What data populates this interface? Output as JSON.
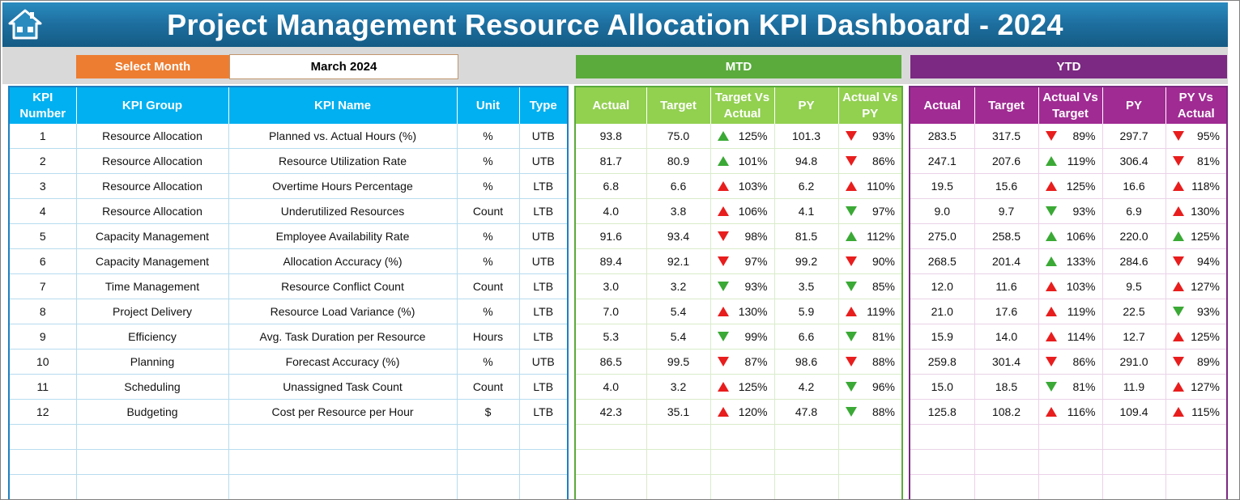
{
  "title": "Project Management Resource Allocation KPI Dashboard - 2024",
  "icons": {
    "home": "home-icon"
  },
  "selector": {
    "label": "Select Month",
    "value": "March 2024"
  },
  "sections": {
    "mtd": "MTD",
    "ytd": "YTD"
  },
  "colors": {
    "title": "#1d6e9e",
    "kpi_header": "#00b0f0",
    "mtd": "#5aab3c",
    "mtd_header": "#92d050",
    "ytd": "#7b2982",
    "ytd_header": "#a02b93",
    "select": "#ed7d31",
    "arrow_green": "#3aa935",
    "arrow_red": "#e81d1d"
  },
  "kpi_headers": [
    "KPI Number",
    "KPI Group",
    "KPI Name",
    "Unit",
    "Type"
  ],
  "mtd_headers": [
    "Actual",
    "Target",
    "Target Vs Actual",
    "PY",
    "Actual Vs PY"
  ],
  "ytd_headers": [
    "Actual",
    "Target",
    "Actual Vs Target",
    "PY",
    "PY Vs Actual"
  ],
  "rows": [
    {
      "num": "1",
      "group": "Resource Allocation",
      "name": "Planned vs. Actual Hours (%)",
      "unit": "%",
      "type": "UTB",
      "mtd": {
        "actual": "93.8",
        "target": "75.0",
        "tva": "125%",
        "tva_arrow": "up-green",
        "py": "101.3",
        "avp": "93%",
        "avp_arrow": "down-red"
      },
      "ytd": {
        "actual": "283.5",
        "target": "317.5",
        "avt": "89%",
        "avt_arrow": "down-red",
        "py": "297.7",
        "pva": "95%",
        "pva_arrow": "down-red"
      }
    },
    {
      "num": "2",
      "group": "Resource Allocation",
      "name": "Resource Utilization Rate",
      "unit": "%",
      "type": "UTB",
      "mtd": {
        "actual": "81.7",
        "target": "80.9",
        "tva": "101%",
        "tva_arrow": "up-green",
        "py": "94.8",
        "avp": "86%",
        "avp_arrow": "down-red"
      },
      "ytd": {
        "actual": "247.1",
        "target": "207.6",
        "avt": "119%",
        "avt_arrow": "up-green",
        "py": "306.4",
        "pva": "81%",
        "pva_arrow": "down-red"
      }
    },
    {
      "num": "3",
      "group": "Resource Allocation",
      "name": "Overtime Hours Percentage",
      "unit": "%",
      "type": "LTB",
      "mtd": {
        "actual": "6.8",
        "target": "6.6",
        "tva": "103%",
        "tva_arrow": "up-red",
        "py": "6.2",
        "avp": "110%",
        "avp_arrow": "up-red"
      },
      "ytd": {
        "actual": "19.5",
        "target": "15.6",
        "avt": "125%",
        "avt_arrow": "up-red",
        "py": "16.6",
        "pva": "118%",
        "pva_arrow": "up-red"
      }
    },
    {
      "num": "4",
      "group": "Resource Allocation",
      "name": "Underutilized Resources",
      "unit": "Count",
      "type": "LTB",
      "mtd": {
        "actual": "4.0",
        "target": "3.8",
        "tva": "106%",
        "tva_arrow": "up-red",
        "py": "4.1",
        "avp": "97%",
        "avp_arrow": "down-green"
      },
      "ytd": {
        "actual": "9.0",
        "target": "9.7",
        "avt": "93%",
        "avt_arrow": "down-green",
        "py": "6.9",
        "pva": "130%",
        "pva_arrow": "up-red"
      }
    },
    {
      "num": "5",
      "group": "Capacity Management",
      "name": "Employee Availability Rate",
      "unit": "%",
      "type": "UTB",
      "mtd": {
        "actual": "91.6",
        "target": "93.4",
        "tva": "98%",
        "tva_arrow": "down-red",
        "py": "81.5",
        "avp": "112%",
        "avp_arrow": "up-green"
      },
      "ytd": {
        "actual": "275.0",
        "target": "258.5",
        "avt": "106%",
        "avt_arrow": "up-green",
        "py": "220.0",
        "pva": "125%",
        "pva_arrow": "up-green"
      }
    },
    {
      "num": "6",
      "group": "Capacity Management",
      "name": "Allocation Accuracy (%)",
      "unit": "%",
      "type": "UTB",
      "mtd": {
        "actual": "89.4",
        "target": "92.1",
        "tva": "97%",
        "tva_arrow": "down-red",
        "py": "99.2",
        "avp": "90%",
        "avp_arrow": "down-red"
      },
      "ytd": {
        "actual": "268.5",
        "target": "201.4",
        "avt": "133%",
        "avt_arrow": "up-green",
        "py": "284.6",
        "pva": "94%",
        "pva_arrow": "down-red"
      }
    },
    {
      "num": "7",
      "group": "Time Management",
      "name": "Resource Conflict Count",
      "unit": "Count",
      "type": "LTB",
      "mtd": {
        "actual": "3.0",
        "target": "3.2",
        "tva": "93%",
        "tva_arrow": "down-green",
        "py": "3.5",
        "avp": "85%",
        "avp_arrow": "down-green"
      },
      "ytd": {
        "actual": "12.0",
        "target": "11.6",
        "avt": "103%",
        "avt_arrow": "up-red",
        "py": "9.5",
        "pva": "127%",
        "pva_arrow": "up-red"
      }
    },
    {
      "num": "8",
      "group": "Project Delivery",
      "name": "Resource Load Variance (%)",
      "unit": "%",
      "type": "LTB",
      "mtd": {
        "actual": "7.0",
        "target": "5.4",
        "tva": "130%",
        "tva_arrow": "up-red",
        "py": "5.9",
        "avp": "119%",
        "avp_arrow": "up-red"
      },
      "ytd": {
        "actual": "21.0",
        "target": "17.6",
        "avt": "119%",
        "avt_arrow": "up-red",
        "py": "22.5",
        "pva": "93%",
        "pva_arrow": "down-green"
      }
    },
    {
      "num": "9",
      "group": "Efficiency",
      "name": "Avg. Task Duration per Resource",
      "unit": "Hours",
      "type": "LTB",
      "mtd": {
        "actual": "5.3",
        "target": "5.4",
        "tva": "99%",
        "tva_arrow": "down-green",
        "py": "6.6",
        "avp": "81%",
        "avp_arrow": "down-green"
      },
      "ytd": {
        "actual": "15.9",
        "target": "14.0",
        "avt": "114%",
        "avt_arrow": "up-red",
        "py": "12.7",
        "pva": "125%",
        "pva_arrow": "up-red"
      }
    },
    {
      "num": "10",
      "group": "Planning",
      "name": "Forecast Accuracy (%)",
      "unit": "%",
      "type": "UTB",
      "mtd": {
        "actual": "86.5",
        "target": "99.5",
        "tva": "87%",
        "tva_arrow": "down-red",
        "py": "98.6",
        "avp": "88%",
        "avp_arrow": "down-red"
      },
      "ytd": {
        "actual": "259.8",
        "target": "301.4",
        "avt": "86%",
        "avt_arrow": "down-red",
        "py": "291.0",
        "pva": "89%",
        "pva_arrow": "down-red"
      }
    },
    {
      "num": "11",
      "group": "Scheduling",
      "name": "Unassigned Task Count",
      "unit": "Count",
      "type": "LTB",
      "mtd": {
        "actual": "4.0",
        "target": "3.2",
        "tva": "125%",
        "tva_arrow": "up-red",
        "py": "4.2",
        "avp": "96%",
        "avp_arrow": "down-green"
      },
      "ytd": {
        "actual": "15.0",
        "target": "18.5",
        "avt": "81%",
        "avt_arrow": "down-green",
        "py": "11.9",
        "pva": "127%",
        "pva_arrow": "up-red"
      }
    },
    {
      "num": "12",
      "group": "Budgeting",
      "name": "Cost per Resource per Hour",
      "unit": "$",
      "type": "LTB",
      "mtd": {
        "actual": "42.3",
        "target": "35.1",
        "tva": "120%",
        "tva_arrow": "up-red",
        "py": "47.8",
        "avp": "88%",
        "avp_arrow": "down-green"
      },
      "ytd": {
        "actual": "125.8",
        "target": "108.2",
        "avt": "116%",
        "avt_arrow": "up-red",
        "py": "109.4",
        "pva": "115%",
        "pva_arrow": "up-red"
      }
    }
  ]
}
